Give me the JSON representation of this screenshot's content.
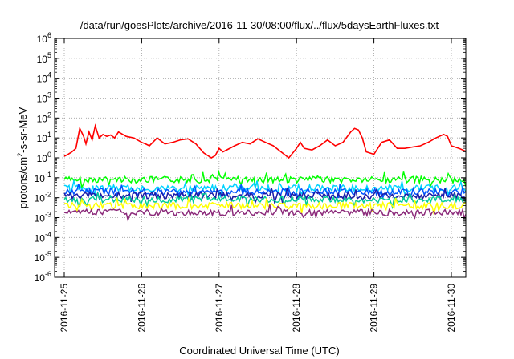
{
  "chart_data": {
    "type": "line",
    "title": "/data/run/goesPlots/archive/2016-11-30/08:00/flux/../flux/5daysEarthFluxes.txt",
    "xlabel": "Coordinated Universal Time (UTC)",
    "ylabel": {
      "main": "protons/cm",
      "sup": "2",
      "rest": "-s-sr-MeV"
    },
    "x_ticks": [
      "2016-11-25",
      "2016-11-26",
      "2016-11-27",
      "2016-11-28",
      "2016-11-29",
      "2016-11-30"
    ],
    "x_range_days": [
      0,
      5.35
    ],
    "y_scale": "log",
    "y_ticks": [
      {
        "base": "10",
        "exp": "-6"
      },
      {
        "base": "10",
        "exp": "-5"
      },
      {
        "base": "10",
        "exp": "-4"
      },
      {
        "base": "10",
        "exp": "-3"
      },
      {
        "base": "10",
        "exp": "-2"
      },
      {
        "base": "10",
        "exp": "-1"
      },
      {
        "base": "10",
        "exp": "0"
      },
      {
        "base": "10",
        "exp": "1"
      },
      {
        "base": "10",
        "exp": "2"
      },
      {
        "base": "10",
        "exp": "3"
      },
      {
        "base": "10",
        "exp": "4"
      },
      {
        "base": "10",
        "exp": "5"
      },
      {
        "base": "10",
        "exp": "6"
      }
    ],
    "y_range_log10": [
      -6,
      6
    ],
    "grid": true,
    "series": [
      {
        "color": "#ff0000",
        "x": [
          0.0,
          0.05,
          0.1,
          0.15,
          0.2,
          0.25,
          0.28,
          0.32,
          0.36,
          0.4,
          0.45,
          0.5,
          0.55,
          0.6,
          0.65,
          0.7,
          0.8,
          0.9,
          1.0,
          1.05,
          1.1,
          1.2,
          1.3,
          1.4,
          1.5,
          1.6,
          1.7,
          1.8,
          1.9,
          1.95,
          2.0,
          2.05,
          2.1,
          2.2,
          2.3,
          2.4,
          2.5,
          2.6,
          2.7,
          2.8,
          2.9,
          3.0,
          3.05,
          3.1,
          3.2,
          3.3,
          3.4,
          3.5,
          3.6,
          3.7,
          3.75,
          3.8,
          3.85,
          3.9,
          4.0,
          4.1,
          4.2,
          4.3,
          4.4,
          4.5,
          4.6,
          4.7,
          4.8,
          4.9,
          4.95,
          5.0,
          5.1,
          5.2,
          5.3,
          5.35
        ],
        "y": [
          1.2,
          1.5,
          2.0,
          3.0,
          30,
          12,
          5,
          20,
          8,
          40,
          10,
          15,
          12,
          14,
          10,
          20,
          12,
          10,
          6,
          5,
          4,
          10,
          5,
          6,
          8,
          9,
          5,
          1.8,
          1.0,
          1.3,
          3,
          2,
          2.5,
          4,
          6,
          5,
          9,
          6,
          4,
          2,
          1.0,
          3,
          6,
          3,
          2.5,
          4,
          8,
          4,
          6,
          20,
          30,
          25,
          10,
          2,
          1.5,
          6,
          8,
          3,
          3,
          3.5,
          4,
          6,
          10,
          15,
          12,
          4,
          3,
          2,
          3,
          3
        ]
      },
      {
        "color": "#00ff00",
        "x": [
          0,
          5.35
        ],
        "y": [
          0.08,
          0.08
        ]
      },
      {
        "color": "#00d2ff",
        "x": [
          0,
          5.35
        ],
        "y": [
          0.03,
          0.03
        ]
      },
      {
        "color": "#0055ff",
        "x": [
          0,
          5.35
        ],
        "y": [
          0.02,
          0.02
        ]
      },
      {
        "color": "#1a1aa8",
        "x": [
          0,
          5.35
        ],
        "y": [
          0.013,
          0.013
        ]
      },
      {
        "color": "#00cc99",
        "x": [
          0,
          5.35
        ],
        "y": [
          0.008,
          0.008
        ]
      },
      {
        "color": "#ffff00",
        "x": [
          0,
          5.35
        ],
        "y": [
          0.004,
          0.004
        ]
      },
      {
        "color": "#8b2a7a",
        "x": [
          0,
          5.35
        ],
        "y": [
          0.0018,
          0.0018
        ]
      }
    ]
  }
}
